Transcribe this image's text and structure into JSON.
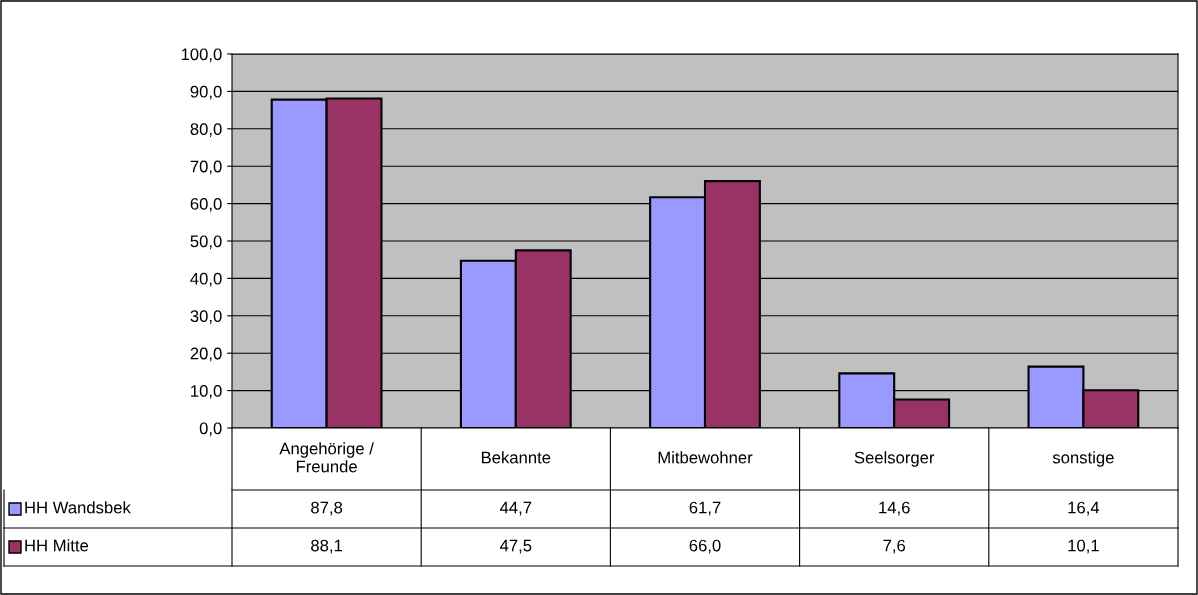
{
  "chart_data": {
    "type": "bar",
    "categories": [
      "Angehörige /\nFreunde",
      "Bekannte",
      "Mitbewohner",
      "Seelsorger",
      "sonstige"
    ],
    "series": [
      {
        "name": "HH Wandsbek",
        "color": "#9999ff",
        "values": [
          87.8,
          44.7,
          61.7,
          14.6,
          16.4
        ],
        "value_labels": [
          "87,8",
          "44,7",
          "61,7",
          "14,6",
          "16,4"
        ]
      },
      {
        "name": "HH Mitte",
        "color": "#993366",
        "values": [
          88.1,
          47.5,
          66.0,
          7.6,
          10.1
        ],
        "value_labels": [
          "88,1",
          "47,5",
          "66,0",
          "7,6",
          "10,1"
        ]
      }
    ],
    "ylim": [
      0,
      100
    ],
    "yticks": [
      {
        "value": 0,
        "label": "0,0"
      },
      {
        "value": 10,
        "label": "10,0"
      },
      {
        "value": 20,
        "label": "20,0"
      },
      {
        "value": 30,
        "label": "30,0"
      },
      {
        "value": 40,
        "label": "40,0"
      },
      {
        "value": 50,
        "label": "50,0"
      },
      {
        "value": 60,
        "label": "60,0"
      },
      {
        "value": 70,
        "label": "70,0"
      },
      {
        "value": 80,
        "label": "80,0"
      },
      {
        "value": 90,
        "label": "90,0"
      },
      {
        "value": 100,
        "label": "100,0"
      }
    ],
    "grid": "y",
    "legend": "bottom left"
  }
}
